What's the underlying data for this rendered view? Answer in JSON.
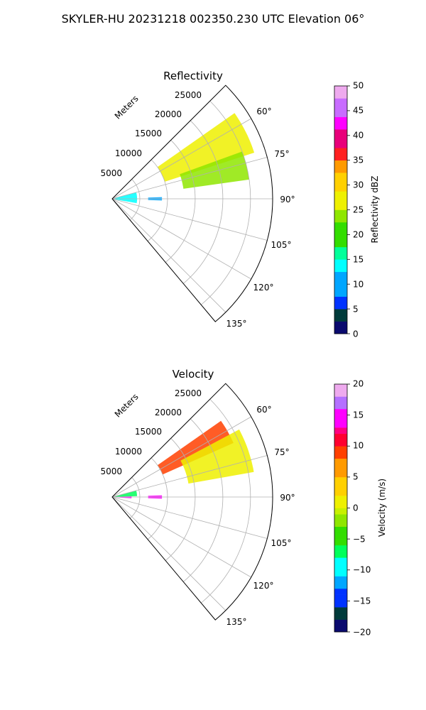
{
  "figure_title": "SKYLER-HU  20231218  002350.230 UTC Elevation 06°",
  "chart_data": [
    {
      "type": "polar-sector",
      "title": "Reflectivity",
      "radial_label": "Meters",
      "radial_ticks": [
        "5000",
        "10000",
        "15000",
        "20000",
        "25000"
      ],
      "radial_tick_values": [
        5000,
        10000,
        15000,
        20000,
        25000
      ],
      "radial_max": 29000,
      "theta_ticks": [
        "60°",
        "75°",
        "90°",
        "105°",
        "120°",
        "135°"
      ],
      "theta_tick_values": [
        60,
        75,
        90,
        105,
        120,
        135
      ],
      "theta_range": [
        45,
        140
      ],
      "colorbar": {
        "label": "Reflectivity dBZ",
        "ticks": [
          "0",
          "5",
          "10",
          "15",
          "20",
          "25",
          "30",
          "35",
          "40",
          "45",
          "50"
        ],
        "range": [
          0,
          50
        ]
      },
      "echoes": [
        {
          "theta": [
            55,
            72
          ],
          "r": [
            10000,
            27000
          ],
          "value": 27
        },
        {
          "theta": [
            70,
            82
          ],
          "r": [
            13000,
            25000
          ],
          "value": 22
        },
        {
          "theta": [
            75,
            100
          ],
          "r": [
            500,
            4500
          ],
          "value": 14
        },
        {
          "theta": [
            88,
            92
          ],
          "r": [
            6500,
            9000
          ],
          "value": 10
        }
      ]
    },
    {
      "type": "polar-sector",
      "title": "Velocity",
      "radial_label": "Meters",
      "radial_ticks": [
        "5000",
        "10000",
        "15000",
        "20000",
        "25000"
      ],
      "radial_tick_values": [
        5000,
        10000,
        15000,
        20000,
        25000
      ],
      "radial_max": 29000,
      "theta_ticks": [
        "60°",
        "75°",
        "90°",
        "105°",
        "120°",
        "135°"
      ],
      "theta_tick_values": [
        60,
        75,
        90,
        105,
        120,
        135
      ],
      "theta_range": [
        45,
        140
      ],
      "colorbar": {
        "label": "Velocity (m/s)",
        "ticks": [
          "−20",
          "−15",
          "−10",
          "−5",
          "0",
          "5",
          "10",
          "15",
          "20"
        ],
        "range": [
          -20,
          20
        ]
      },
      "echoes": [
        {
          "theta": [
            55,
            66
          ],
          "r": [
            10000,
            24000
          ],
          "value": 9
        },
        {
          "theta": [
            62,
            80
          ],
          "r": [
            14000,
            26000
          ],
          "value": 1
        },
        {
          "theta": [
            75,
            88
          ],
          "r": [
            500,
            4500
          ],
          "value": -7
        },
        {
          "theta": [
            88,
            94
          ],
          "r": [
            500,
            3500
          ],
          "value": 14
        },
        {
          "theta": [
            88,
            92
          ],
          "r": [
            6500,
            9000
          ],
          "value": 15
        }
      ]
    }
  ]
}
